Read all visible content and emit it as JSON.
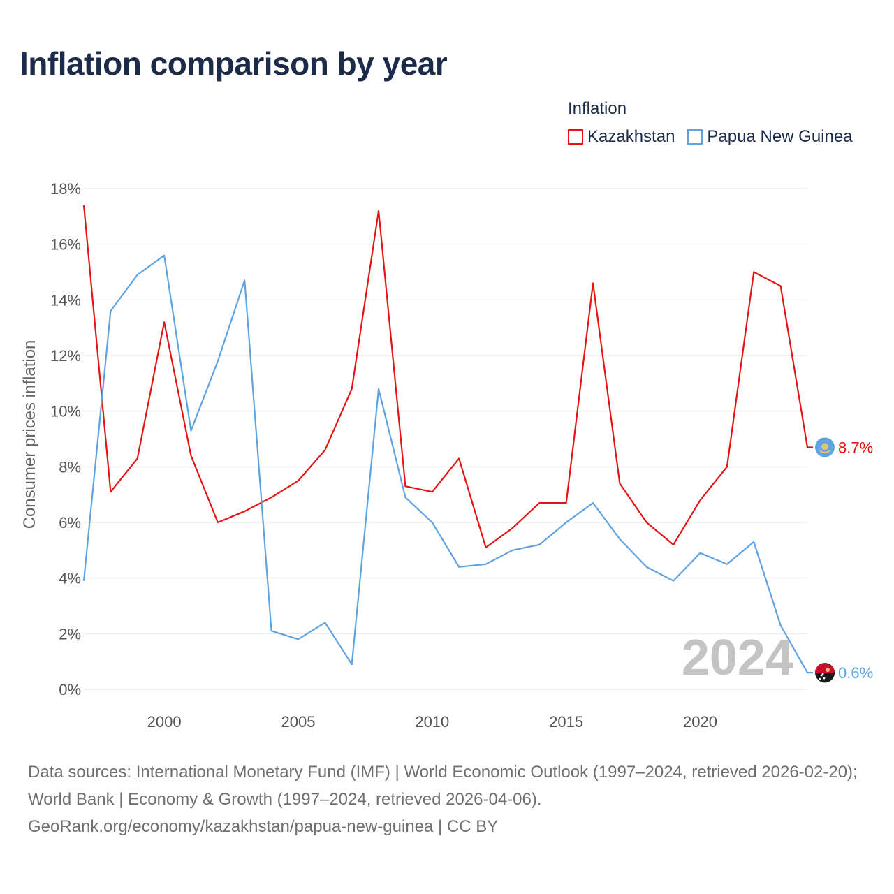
{
  "title": "Inflation comparison by year",
  "legend": {
    "title": "Inflation",
    "items": [
      {
        "label": "Kazakhstan",
        "color": "#e51414"
      },
      {
        "label": "Papua New Guinea",
        "color": "#5fa3e1"
      }
    ]
  },
  "footer": {
    "line1": "Data sources: International Monetary Fund (IMF) | World Economic Outlook (1997–2024, retrieved 2026-02-20); World Bank | Economy & Growth (1997–2024, retrieved 2026-04-06).",
    "line2": "GeoRank.org/economy/kazakhstan/papua-new-guinea | CC BY"
  },
  "chart_data": {
    "type": "line",
    "title": "Inflation comparison by year",
    "xlabel": "",
    "ylabel": "Consumer prices inflation",
    "xlim": [
      1997,
      2024
    ],
    "ylim": [
      0,
      18
    ],
    "x_ticks": [
      2000,
      2005,
      2010,
      2015,
      2020
    ],
    "y_ticks": [
      "0%",
      "2%",
      "4%",
      "6%",
      "8%",
      "10%",
      "12%",
      "14%",
      "16%",
      "18%"
    ],
    "y_tick_values": [
      0,
      2,
      4,
      6,
      8,
      10,
      12,
      14,
      16,
      18
    ],
    "grid": true,
    "legend_position": "top-right",
    "annotation_year": "2024",
    "x": [
      1997,
      1998,
      1999,
      2000,
      2001,
      2002,
      2003,
      2004,
      2005,
      2006,
      2007,
      2008,
      2009,
      2010,
      2011,
      2012,
      2013,
      2014,
      2015,
      2016,
      2017,
      2018,
      2019,
      2020,
      2021,
      2022,
      2023,
      2024
    ],
    "series": [
      {
        "name": "Kazakhstan",
        "color": "#e51414",
        "end_label": "8.7%",
        "flag_icon": "kazakhstan-flag-icon",
        "values": [
          17.4,
          7.1,
          8.3,
          13.2,
          8.4,
          6.0,
          6.4,
          6.9,
          7.5,
          8.6,
          10.8,
          17.2,
          7.3,
          7.1,
          8.3,
          5.1,
          5.8,
          6.7,
          6.7,
          14.6,
          7.4,
          6.0,
          5.2,
          6.8,
          8.0,
          15.0,
          14.5,
          8.7
        ]
      },
      {
        "name": "Papua New Guinea",
        "color": "#5fa3e1",
        "end_label": "0.6%",
        "flag_icon": "papua-new-guinea-flag-icon",
        "values": [
          3.9,
          13.6,
          14.9,
          15.6,
          9.3,
          11.8,
          14.7,
          2.1,
          1.8,
          2.4,
          0.9,
          10.8,
          6.9,
          6.0,
          4.4,
          4.5,
          5.0,
          5.2,
          6.0,
          6.7,
          5.4,
          4.4,
          3.9,
          4.9,
          4.5,
          5.3,
          2.3,
          0.6
        ]
      }
    ]
  }
}
